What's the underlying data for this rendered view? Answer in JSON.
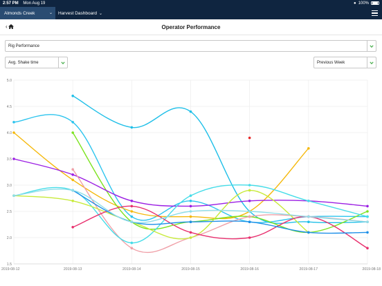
{
  "status_bar": {
    "time": "2:57 PM",
    "date": "Mon Aug 19",
    "battery": "100%"
  },
  "nav": {
    "location": "Almonds Creek",
    "dashboard": "Harvest Dashboard"
  },
  "page": {
    "title": "Operator Performance"
  },
  "filters": {
    "performance_select": "Rig Performance",
    "metric_select": "Avg. Shake time",
    "period_select": "Previous Week"
  },
  "colors": {
    "nav_bg": "#0f2540",
    "nav_active": "#2a4c72",
    "select_chevron": "#4caf50"
  },
  "chart_data": {
    "type": "line",
    "ylim": [
      1.5,
      5.0
    ],
    "y_ticks": [
      "1.5",
      "2.0",
      "2.5",
      "3.0",
      "3.5",
      "4.0",
      "4.5",
      "5.0"
    ],
    "x": [
      "2019-08-12",
      "2019-08-13",
      "2019-08-14",
      "2019-08-15",
      "2019-08-16",
      "2019-08-17",
      "2019-08-18"
    ],
    "grid": true,
    "series": [
      {
        "color": "#1fbfe8",
        "values": [
          null,
          4.7,
          4.1,
          4.4,
          2.5,
          2.3,
          2.3
        ]
      },
      {
        "color": "#2cc4ee",
        "values": [
          4.2,
          4.2,
          2.4,
          2.7,
          2.3,
          2.4,
          2.4
        ]
      },
      {
        "color": "#f5b80a",
        "values": [
          4.0,
          3.1,
          2.5,
          2.4,
          2.5,
          3.7,
          null
        ]
      },
      {
        "color": "#7be31e",
        "values": [
          null,
          4.0,
          2.3,
          2.3,
          2.4,
          2.1,
          2.5
        ]
      },
      {
        "color": "#9b1ee3",
        "values": [
          3.5,
          3.2,
          2.7,
          2.6,
          2.7,
          2.7,
          2.6
        ]
      },
      {
        "color": "#f0a0a8",
        "values": [
          null,
          3.3,
          1.8,
          2.0,
          2.4,
          2.4,
          2.3
        ]
      },
      {
        "color": "#45dce8",
        "values": [
          2.8,
          2.9,
          1.9,
          2.8,
          3.0,
          2.7,
          2.4
        ]
      },
      {
        "color": "#c8ea3a",
        "values": [
          2.8,
          2.7,
          2.3,
          2.0,
          2.9,
          2.1,
          null
        ]
      },
      {
        "color": "#e8306e",
        "values": [
          null,
          2.2,
          2.6,
          2.1,
          2.0,
          2.4,
          1.8
        ]
      },
      {
        "color": "#1d8fe8",
        "values": [
          null,
          2.9,
          2.3,
          2.3,
          2.3,
          2.1,
          2.1
        ]
      },
      {
        "color": "#8fdde8",
        "values": [
          2.8,
          2.9,
          2.3,
          2.5,
          2.5,
          2.4,
          2.3
        ]
      },
      {
        "color": "#e82a2a",
        "values": [
          null,
          null,
          null,
          null,
          3.9,
          null,
          null
        ]
      }
    ]
  }
}
